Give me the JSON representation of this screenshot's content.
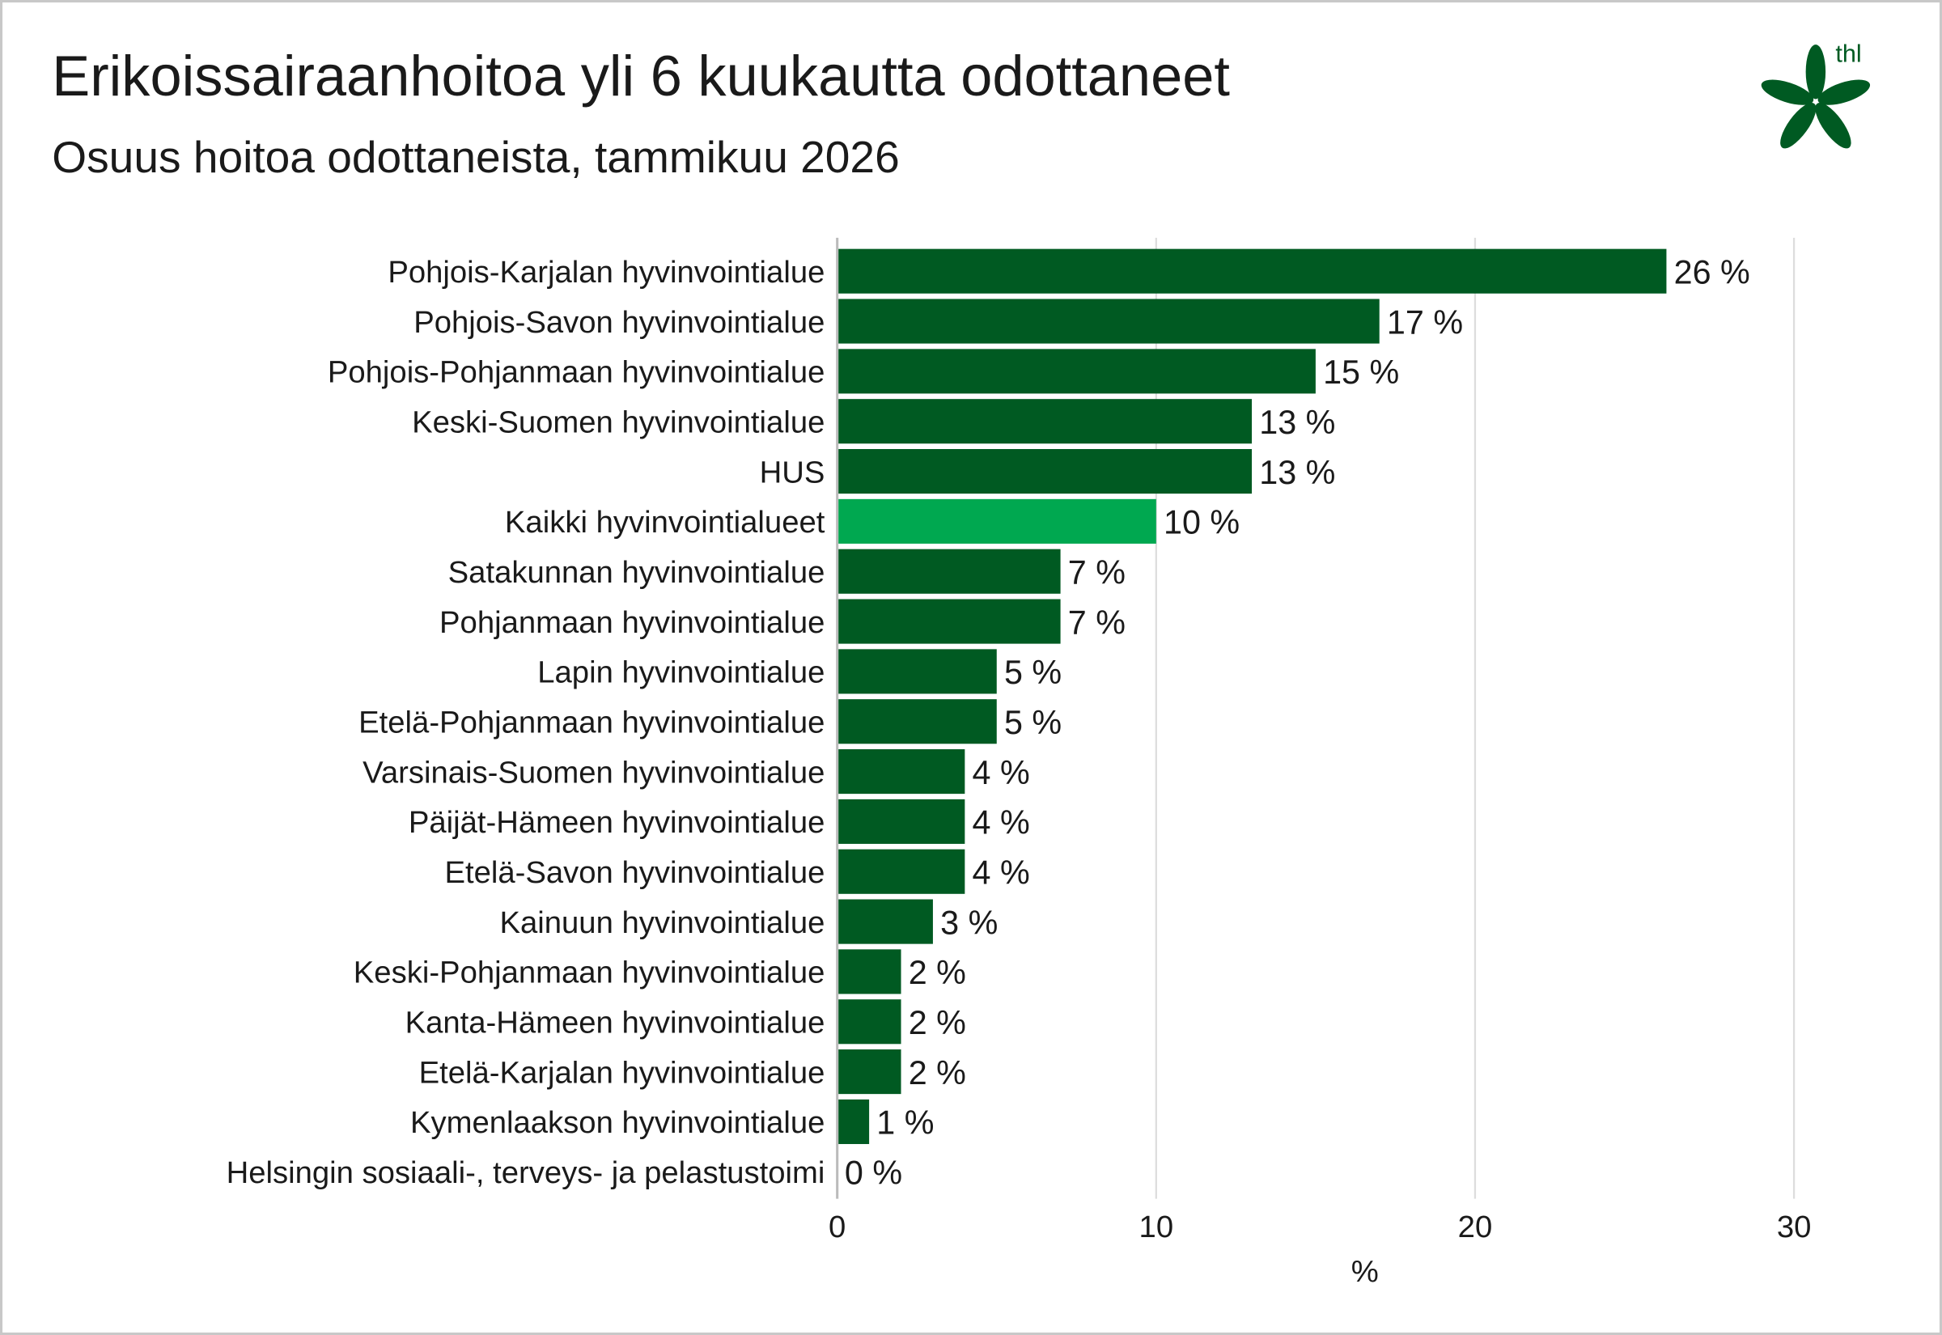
{
  "header": {
    "title": "Erikoissairaanhoitoa yli 6 kuukautta odottaneet",
    "subtitle": "Osuus hoitoa odottaneista, tammikuu 2026",
    "logo_text": "thl"
  },
  "colors": {
    "bar": "#005A22",
    "highlight": "#00A850",
    "grid": "#DDDDDD",
    "axis": "#BBBBBB"
  },
  "chart_data": {
    "type": "bar",
    "orientation": "horizontal",
    "title": "Erikoissairaanhoitoa yli 6 kuukautta odottaneet",
    "subtitle": "Osuus hoitoa odottaneista, tammikuu 2026",
    "xlabel": "%",
    "ylabel": "",
    "xlim": [
      0,
      30
    ],
    "xticks": [
      "0",
      "10",
      "20",
      "30"
    ],
    "grid": true,
    "highlight_category": "Kaikki hyvinvointialueet",
    "categories": [
      "Pohjois-Karjalan hyvinvointialue",
      "Pohjois-Savon hyvinvointialue",
      "Pohjois-Pohjanmaan hyvinvointialue",
      "Keski-Suomen hyvinvointialue",
      "HUS",
      "Kaikki hyvinvointialueet",
      "Satakunnan hyvinvointialue",
      "Pohjanmaan hyvinvointialue",
      "Lapin hyvinvointialue",
      "Etelä-Pohjanmaan hyvinvointialue",
      "Varsinais-Suomen hyvinvointialue",
      "Päijät-Hämeen hyvinvointialue",
      "Etelä-Savon hyvinvointialue",
      "Kainuun hyvinvointialue",
      "Keski-Pohjanmaan hyvinvointialue",
      "Kanta-Hämeen hyvinvointialue",
      "Etelä-Karjalan hyvinvointialue",
      "Kymenlaakson hyvinvointialue",
      "Helsingin sosiaali-, terveys- ja pelastustoimi"
    ],
    "values": [
      26,
      17,
      15,
      13,
      13,
      10,
      7,
      7,
      5,
      5,
      4,
      4,
      4,
      3,
      2,
      2,
      2,
      1,
      0
    ],
    "value_labels": [
      "26 %",
      "17 %",
      "15 %",
      "13 %",
      "13 %",
      "10 %",
      "7 %",
      "7 %",
      "5 %",
      "5 %",
      "4 %",
      "4 %",
      "4 %",
      "3 %",
      "2 %",
      "2 %",
      "2 %",
      "1 %",
      "0 %"
    ]
  }
}
